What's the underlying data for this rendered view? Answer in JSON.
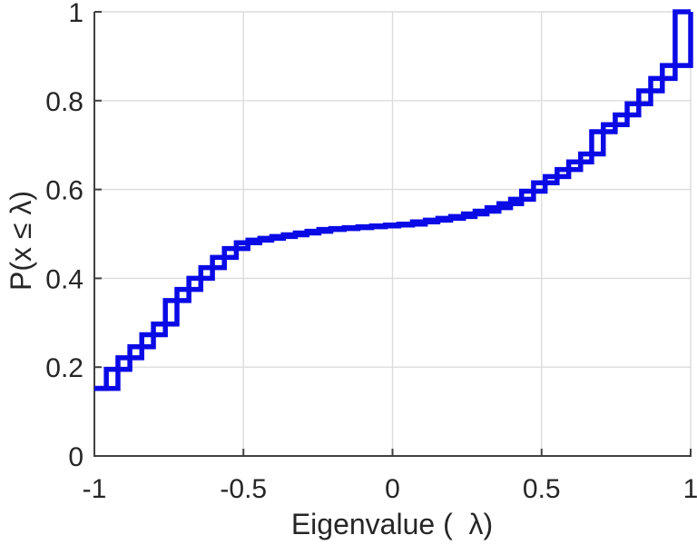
{
  "chart_data": {
    "type": "line",
    "subtype": "empirical-cdf-stairs",
    "title": "",
    "xlabel": "Eigenvalue (  λ)",
    "ylabel": "P(x ≤ λ)",
    "xlim": [
      -1,
      1
    ],
    "ylim": [
      0,
      1
    ],
    "xticks": [
      -1,
      -0.5,
      0,
      0.5,
      1
    ],
    "xtick_labels": [
      "-1",
      "-0.5",
      "0",
      "0.5",
      "1"
    ],
    "yticks": [
      0,
      0.2,
      0.4,
      0.6,
      0.8,
      1
    ],
    "ytick_labels": [
      "0",
      "0.2",
      "0.4",
      "0.6",
      "0.8",
      "1"
    ],
    "grid": true,
    "legend": null,
    "colors": {
      "line": "#0a0ae6",
      "grid": "#dcdcdc",
      "axis": "#404040",
      "text": "#262626",
      "background": "#ffffff"
    },
    "line_width": 5.5,
    "series": [
      {
        "name": "eigenvalue-cdf",
        "x": [
          -1.0,
          -0.96,
          -0.921,
          -0.881,
          -0.841,
          -0.802,
          -0.762,
          -0.723,
          -0.683,
          -0.643,
          -0.604,
          -0.564,
          -0.524,
          -0.485,
          -0.445,
          -0.405,
          -0.366,
          -0.326,
          -0.287,
          -0.247,
          -0.207,
          -0.162,
          -0.116,
          -0.07,
          -0.024,
          0.021,
          0.067,
          0.11,
          0.152,
          0.195,
          0.238,
          0.277,
          0.317,
          0.357,
          0.396,
          0.433,
          0.473,
          0.512,
          0.552,
          0.591,
          0.631,
          0.668,
          0.707,
          0.747,
          0.787,
          0.826,
          0.866,
          0.905,
          0.948,
          1.0
        ],
        "p": [
          0.152,
          0.152,
          0.195,
          0.221,
          0.246,
          0.273,
          0.297,
          0.35,
          0.375,
          0.4,
          0.424,
          0.447,
          0.467,
          0.48,
          0.486,
          0.49,
          0.494,
          0.498,
          0.502,
          0.506,
          0.51,
          0.512,
          0.514,
          0.516,
          0.518,
          0.52,
          0.522,
          0.527,
          0.531,
          0.535,
          0.539,
          0.545,
          0.551,
          0.559,
          0.568,
          0.578,
          0.596,
          0.615,
          0.629,
          0.645,
          0.662,
          0.68,
          0.73,
          0.746,
          0.768,
          0.793,
          0.822,
          0.85,
          0.879,
          1.0
        ]
      }
    ]
  }
}
